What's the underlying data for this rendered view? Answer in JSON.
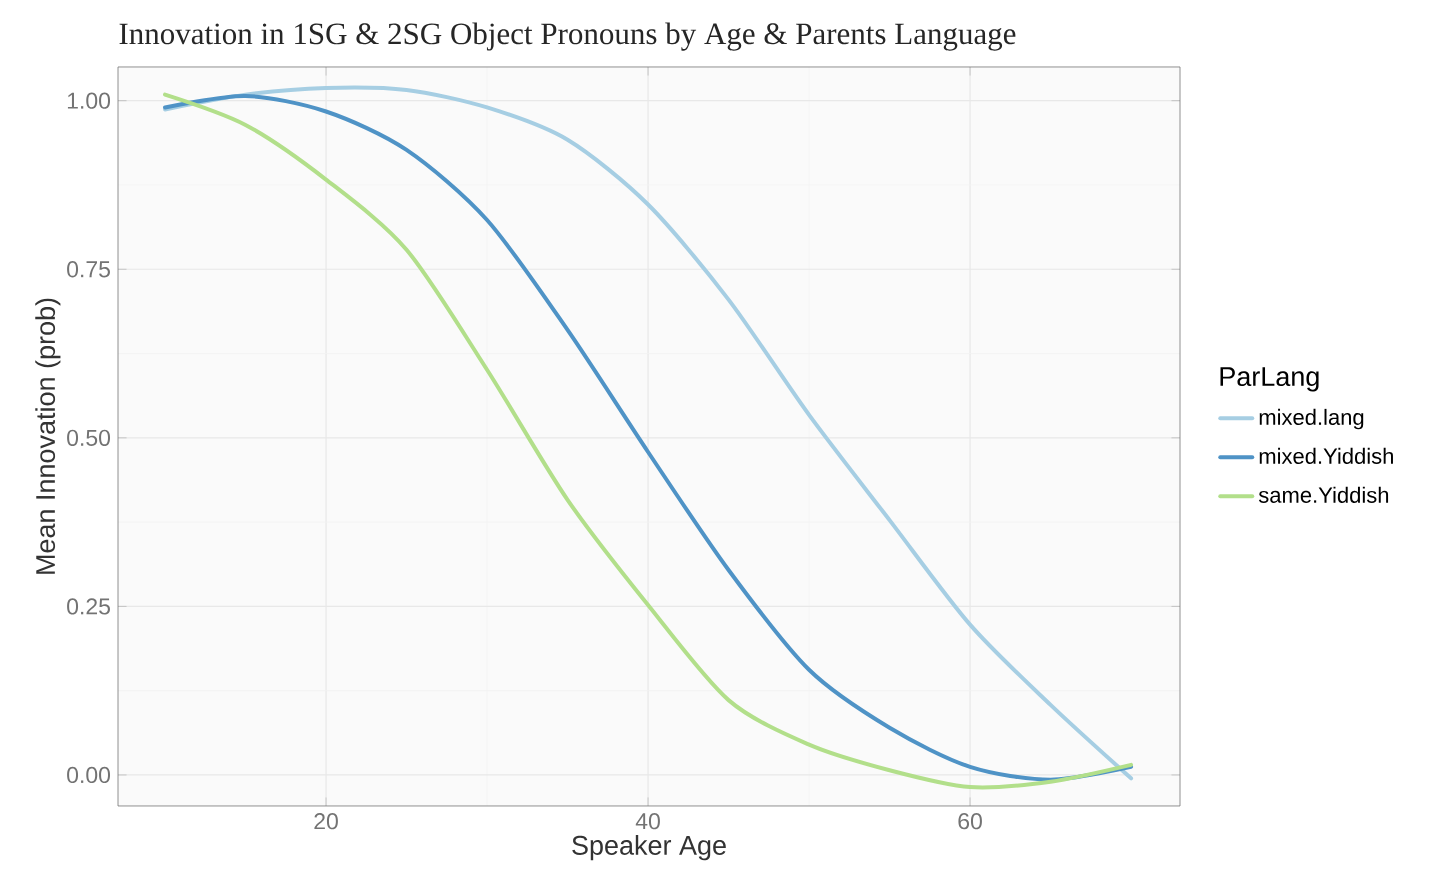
{
  "chart_data": {
    "type": "line",
    "title": "Innovation in 1SG & 2SG Object Pronouns by Age & Parents Language",
    "xlabel": "Speaker Age",
    "ylabel": "Mean Innovation (prob)",
    "legend_title": "ParLang",
    "x": [
      10,
      15,
      20,
      25,
      30,
      35,
      40,
      45,
      50,
      55,
      60,
      65,
      70
    ],
    "series": [
      {
        "name": "mixed.lang",
        "color": "#a6cee3",
        "values": [
          0.987,
          1.009,
          1.019,
          1.016,
          0.99,
          0.942,
          0.846,
          0.705,
          0.534,
          0.378,
          0.223,
          0.104,
          -0.005
        ]
      },
      {
        "name": "mixed.Yiddish",
        "color": "#4f93c6",
        "values": [
          0.99,
          1.007,
          0.984,
          0.927,
          0.823,
          0.66,
          0.479,
          0.304,
          0.156,
          0.07,
          0.012,
          -0.007,
          0.012
        ]
      },
      {
        "name": "same.Yiddish",
        "color": "#b2df8a",
        "values": [
          1.009,
          0.964,
          0.883,
          0.779,
          0.601,
          0.408,
          0.252,
          0.111,
          0.045,
          0.007,
          -0.018,
          -0.01,
          0.015
        ]
      }
    ],
    "xlim": [
      7.08,
      73.04
    ],
    "ylim": [
      -0.046,
      1.05
    ],
    "xticks": [
      20,
      40,
      60
    ],
    "yticks": [
      {
        "value": 0,
        "label": "0.00"
      },
      {
        "value": 0.25,
        "label": "0.25"
      },
      {
        "value": 0.5,
        "label": "0.50"
      },
      {
        "value": 0.75,
        "label": "0.75"
      },
      {
        "value": 1,
        "label": "1.00"
      }
    ],
    "grid": true,
    "legend": "right",
    "marker": "none",
    "line_style": "solid"
  }
}
